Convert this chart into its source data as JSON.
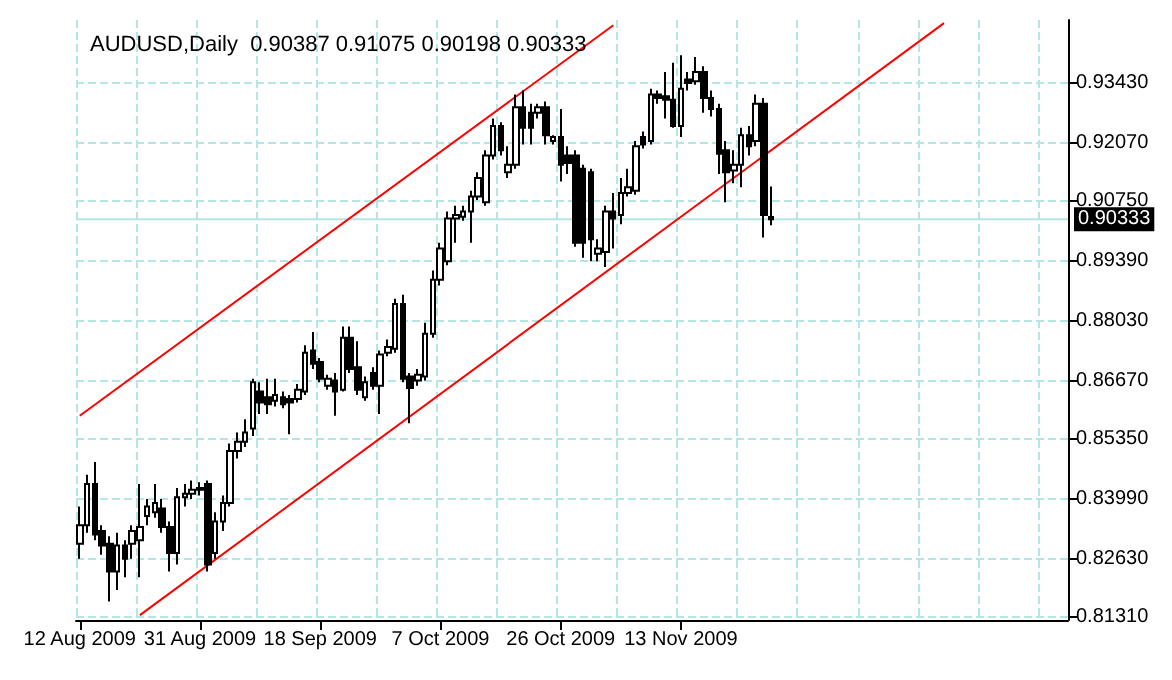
{
  "chart_data": {
    "type": "candlestick",
    "title": "AUDUSD,Daily  0.90387 0.91075 0.90198 0.90333",
    "categories": [
      "12 Aug 2009",
      null,
      null,
      null,
      null,
      null,
      null,
      null,
      null,
      null,
      null,
      null,
      null,
      null,
      null,
      null,
      "31 Aug 2009",
      null,
      null,
      null,
      null,
      null,
      null,
      null,
      null,
      null,
      null,
      null,
      null,
      null,
      null,
      null,
      "18 Sep 2009",
      null,
      null,
      null,
      null,
      null,
      null,
      null,
      null,
      null,
      null,
      null,
      null,
      null,
      null,
      null,
      "7 Oct 2009",
      null,
      null,
      null,
      null,
      null,
      null,
      null,
      null,
      null,
      null,
      null,
      null,
      null,
      null,
      null,
      "26 Oct 2009",
      null,
      null,
      null,
      null,
      null,
      null,
      null,
      null,
      null,
      null,
      null,
      null,
      null,
      null,
      null,
      "13 Nov 2009",
      null,
      null,
      null,
      null,
      null,
      null,
      null,
      null,
      null,
      null,
      null,
      null,
      null,
      null,
      null,
      null,
      null,
      null,
      null,
      null,
      null,
      null,
      null,
      null,
      null,
      null,
      null,
      null,
      null,
      null,
      null,
      null,
      null,
      null,
      null,
      null,
      null,
      null,
      null,
      null,
      null,
      null,
      null,
      null,
      null,
      null,
      null,
      null,
      null,
      null,
      null
    ],
    "series": [
      {
        "color": "#000000",
        "ohlc": [
          [
            0.8298,
            0.8382,
            0.8264,
            0.834
          ],
          [
            0.834,
            0.8454,
            0.8323,
            0.8433
          ],
          [
            0.8433,
            0.8483,
            0.8306,
            0.8319
          ],
          [
            0.8327,
            0.834,
            0.8273,
            0.8294
          ],
          [
            0.8298,
            0.8315,
            0.8167,
            0.8235
          ],
          [
            0.8235,
            0.8323,
            0.8193,
            0.8294
          ],
          [
            0.8294,
            0.8306,
            0.8222,
            0.8264
          ],
          [
            0.8298,
            0.834,
            0.8264,
            0.8327
          ],
          [
            0.8306,
            0.8433,
            0.8222,
            0.8336
          ],
          [
            0.8361,
            0.8399,
            0.834,
            0.8382
          ],
          [
            0.8369,
            0.8433,
            0.8357,
            0.839
          ],
          [
            0.8378,
            0.8399,
            0.8323,
            0.8336
          ],
          [
            0.8336,
            0.8348,
            0.8235,
            0.8277
          ],
          [
            0.8277,
            0.8424,
            0.8251,
            0.8403
          ],
          [
            0.8403,
            0.8433,
            0.8382,
            0.8411
          ],
          [
            0.8411,
            0.8441,
            0.8399,
            0.842
          ],
          [
            0.842,
            0.8437,
            0.8407,
            0.8424
          ],
          [
            0.8433,
            0.8441,
            0.8235,
            0.8251
          ],
          [
            0.8277,
            0.8369,
            0.8264,
            0.8348
          ],
          [
            0.8348,
            0.8407,
            0.8327,
            0.839
          ],
          [
            0.839,
            0.8525,
            0.8382,
            0.8508
          ],
          [
            0.8508,
            0.855,
            0.8491,
            0.8529
          ],
          [
            0.8529,
            0.858,
            0.8517,
            0.855
          ],
          [
            0.8559,
            0.8672,
            0.8542,
            0.8664
          ],
          [
            0.8643,
            0.8664,
            0.8592,
            0.8618
          ],
          [
            0.863,
            0.8672,
            0.8592,
            0.8614
          ],
          [
            0.8622,
            0.8672,
            0.8609,
            0.8635
          ],
          [
            0.863,
            0.8643,
            0.8605,
            0.8614
          ],
          [
            0.8626,
            0.8635,
            0.8546,
            0.8618
          ],
          [
            0.8626,
            0.866,
            0.8618,
            0.8647
          ],
          [
            0.8643,
            0.8748,
            0.8635,
            0.8731
          ],
          [
            0.8736,
            0.8778,
            0.8694,
            0.8706
          ],
          [
            0.871,
            0.8719,
            0.8664,
            0.8672
          ],
          [
            0.8656,
            0.8681,
            0.8647,
            0.8672
          ],
          [
            0.8668,
            0.8685,
            0.8588,
            0.8643
          ],
          [
            0.8647,
            0.879,
            0.8643,
            0.8765
          ],
          [
            0.8765,
            0.879,
            0.8685,
            0.8694
          ],
          [
            0.8698,
            0.8757,
            0.8635,
            0.8647
          ],
          [
            0.863,
            0.8677,
            0.8622,
            0.8664
          ],
          [
            0.8685,
            0.8698,
            0.8647,
            0.8656
          ],
          [
            0.8656,
            0.8736,
            0.8592,
            0.8727
          ],
          [
            0.8731,
            0.8761,
            0.8723,
            0.8744
          ],
          [
            0.874,
            0.8853,
            0.8731,
            0.8841
          ],
          [
            0.8841,
            0.8862,
            0.8664,
            0.8672
          ],
          [
            0.8677,
            0.8685,
            0.8571,
            0.8651
          ],
          [
            0.8668,
            0.8694,
            0.8656,
            0.8681
          ],
          [
            0.8677,
            0.8799,
            0.8668,
            0.8774
          ],
          [
            0.8774,
            0.8917,
            0.8765,
            0.8896
          ],
          [
            0.8896,
            0.898,
            0.8883,
            0.8967
          ],
          [
            0.8938,
            0.9051,
            0.8929,
            0.9035
          ],
          [
            0.9035,
            0.9064,
            0.898,
            0.9043
          ],
          [
            0.9039,
            0.9064,
            0.903,
            0.9051
          ],
          [
            0.9051,
            0.9098,
            0.898,
            0.9085
          ],
          [
            0.9085,
            0.914,
            0.9077,
            0.9127
          ],
          [
            0.9072,
            0.919,
            0.9064,
            0.9178
          ],
          [
            0.9178,
            0.9262,
            0.9169,
            0.9245
          ],
          [
            0.9245,
            0.9253,
            0.9178,
            0.919
          ],
          [
            0.914,
            0.9199,
            0.9127,
            0.9157
          ],
          [
            0.9157,
            0.9316,
            0.9148,
            0.9287
          ],
          [
            0.9287,
            0.9325,
            0.9203,
            0.9241
          ],
          [
            0.9275,
            0.9295,
            0.9203,
            0.9241
          ],
          [
            0.9275,
            0.9295,
            0.9262,
            0.9287
          ],
          [
            0.9287,
            0.93,
            0.9203,
            0.9224
          ],
          [
            0.9211,
            0.9224,
            0.9203,
            0.922
          ],
          [
            0.922,
            0.9283,
            0.9119,
            0.9157
          ],
          [
            0.9178,
            0.9199,
            0.9136,
            0.9161
          ],
          [
            0.9178,
            0.919,
            0.8971,
            0.898
          ],
          [
            0.9148,
            0.9157,
            0.8946,
            0.898
          ],
          [
            0.914,
            0.9148,
            0.8938,
            0.8988
          ],
          [
            0.8955,
            0.8988,
            0.8938,
            0.8967
          ],
          [
            0.8959,
            0.9064,
            0.8925,
            0.9051
          ],
          [
            0.9051,
            0.9093,
            0.8967,
            0.9035
          ],
          [
            0.9043,
            0.9127,
            0.9022,
            0.9093
          ],
          [
            0.9093,
            0.9148,
            0.9085,
            0.9106
          ],
          [
            0.9098,
            0.9211,
            0.9089,
            0.9199
          ],
          [
            0.922,
            0.9232,
            0.9194,
            0.9203
          ],
          [
            0.9211,
            0.9329,
            0.9203,
            0.9316
          ],
          [
            0.9316,
            0.9325,
            0.9295,
            0.9308
          ],
          [
            0.9312,
            0.9367,
            0.9262,
            0.9304
          ],
          [
            0.9304,
            0.9388,
            0.9241,
            0.9245
          ],
          [
            0.9245,
            0.9405,
            0.922,
            0.9329
          ],
          [
            0.935,
            0.9367,
            0.9325,
            0.9342
          ],
          [
            0.9346,
            0.9401,
            0.9338,
            0.9367
          ],
          [
            0.9367,
            0.938,
            0.9275,
            0.9308
          ],
          [
            0.9308,
            0.9325,
            0.9266,
            0.9283
          ],
          [
            0.9283,
            0.9295,
            0.9136,
            0.9182
          ],
          [
            0.919,
            0.9211,
            0.9072,
            0.914
          ],
          [
            0.9144,
            0.919,
            0.9115,
            0.9157
          ],
          [
            0.9157,
            0.9241,
            0.9106,
            0.9224
          ],
          [
            0.9224,
            0.9245,
            0.9178,
            0.9199
          ],
          [
            0.9211,
            0.9316,
            0.9199,
            0.9295
          ],
          [
            0.9295,
            0.9308,
            0.8992,
            0.9043
          ],
          [
            0.90387,
            0.91075,
            0.90198,
            0.90333
          ],
          null,
          null,
          null,
          null,
          null,
          null,
          null,
          null,
          null,
          null,
          null,
          null,
          null,
          null,
          null,
          null,
          null,
          null,
          null,
          null,
          null,
          null,
          null,
          null,
          null,
          null,
          null,
          null,
          null,
          null,
          null,
          null,
          null,
          null,
          null,
          null,
          null,
          null,
          null
        ]
      },
      {
        "type": "line",
        "color": "#ff0000",
        "values": [
          0.8588,
          null,
          null,
          null,
          null,
          null,
          null,
          null,
          null,
          null,
          null,
          null,
          null,
          null,
          null,
          null,
          null,
          null,
          null,
          null,
          null,
          null,
          null,
          null,
          null,
          null,
          null,
          null,
          null,
          null,
          null,
          null,
          null,
          null,
          null,
          null,
          null,
          null,
          null,
          null,
          null,
          null,
          null,
          null,
          null,
          null,
          null,
          null,
          null,
          null,
          null,
          null,
          null,
          null,
          null,
          null,
          null,
          null,
          null,
          null,
          null,
          null,
          null,
          null,
          null,
          null,
          null,
          null,
          null,
          null,
          null,
          0.9473,
          null,
          null,
          null,
          null,
          null,
          null,
          null,
          null,
          null,
          null,
          null,
          null,
          null,
          null,
          null,
          null,
          null,
          null,
          null,
          null,
          null,
          null,
          null,
          null,
          null,
          null,
          null,
          null,
          null,
          null,
          null,
          null,
          null,
          null,
          null,
          null,
          null,
          null,
          null,
          null,
          null,
          null,
          null,
          null,
          null,
          null,
          null,
          null,
          null,
          null,
          null,
          null,
          null,
          null,
          null,
          null,
          null,
          null,
          null,
          null
        ]
      },
      {
        "type": "line",
        "color": "#ff0000",
        "values": [
          null,
          null,
          null,
          null,
          null,
          null,
          null,
          null,
          0.8136,
          null,
          null,
          null,
          null,
          null,
          null,
          null,
          null,
          null,
          null,
          null,
          null,
          null,
          null,
          null,
          null,
          null,
          null,
          null,
          null,
          null,
          null,
          null,
          null,
          null,
          null,
          null,
          null,
          null,
          null,
          null,
          null,
          null,
          null,
          null,
          null,
          null,
          null,
          null,
          null,
          null,
          null,
          null,
          null,
          null,
          null,
          null,
          null,
          null,
          null,
          null,
          null,
          null,
          null,
          null,
          null,
          null,
          null,
          null,
          null,
          null,
          null,
          null,
          null,
          null,
          null,
          null,
          null,
          null,
          null,
          null,
          null,
          null,
          null,
          null,
          null,
          null,
          null,
          null,
          null,
          null,
          null,
          null,
          null,
          null,
          null,
          null,
          null,
          null,
          null,
          null,
          null,
          null,
          null,
          null,
          null,
          null,
          null,
          null,
          null,
          null,
          null,
          null,
          null,
          null,
          null,
          0.9478,
          null,
          null,
          null,
          null,
          null,
          null,
          null,
          null,
          null,
          null,
          null,
          null,
          null,
          null,
          null,
          null
        ]
      }
    ],
    "ylim": [
      0.8125,
      0.9485
    ],
    "yticks": [
      {
        "value": 0.8131,
        "label": "0.81310"
      },
      {
        "value": 0.8263,
        "label": "0.82630"
      },
      {
        "value": 0.8399,
        "label": "0.83990"
      },
      {
        "value": 0.8535,
        "label": "0.85350"
      },
      {
        "value": 0.8667,
        "label": "0.86670"
      },
      {
        "value": 0.8803,
        "label": "0.88030"
      },
      {
        "value": 0.8939,
        "label": "0.89390"
      },
      {
        "value": 0.9075,
        "label": "0.90750"
      },
      {
        "value": 0.9207,
        "label": "0.92070"
      },
      {
        "value": 0.9343,
        "label": "0.93430"
      }
    ],
    "ref_lines": [
      {
        "axis": "y",
        "value": 0.90333,
        "label": "0.90333",
        "color": "#b4e6e6"
      }
    ],
    "grid": true,
    "marker": "none",
    "line_style": "solid"
  }
}
